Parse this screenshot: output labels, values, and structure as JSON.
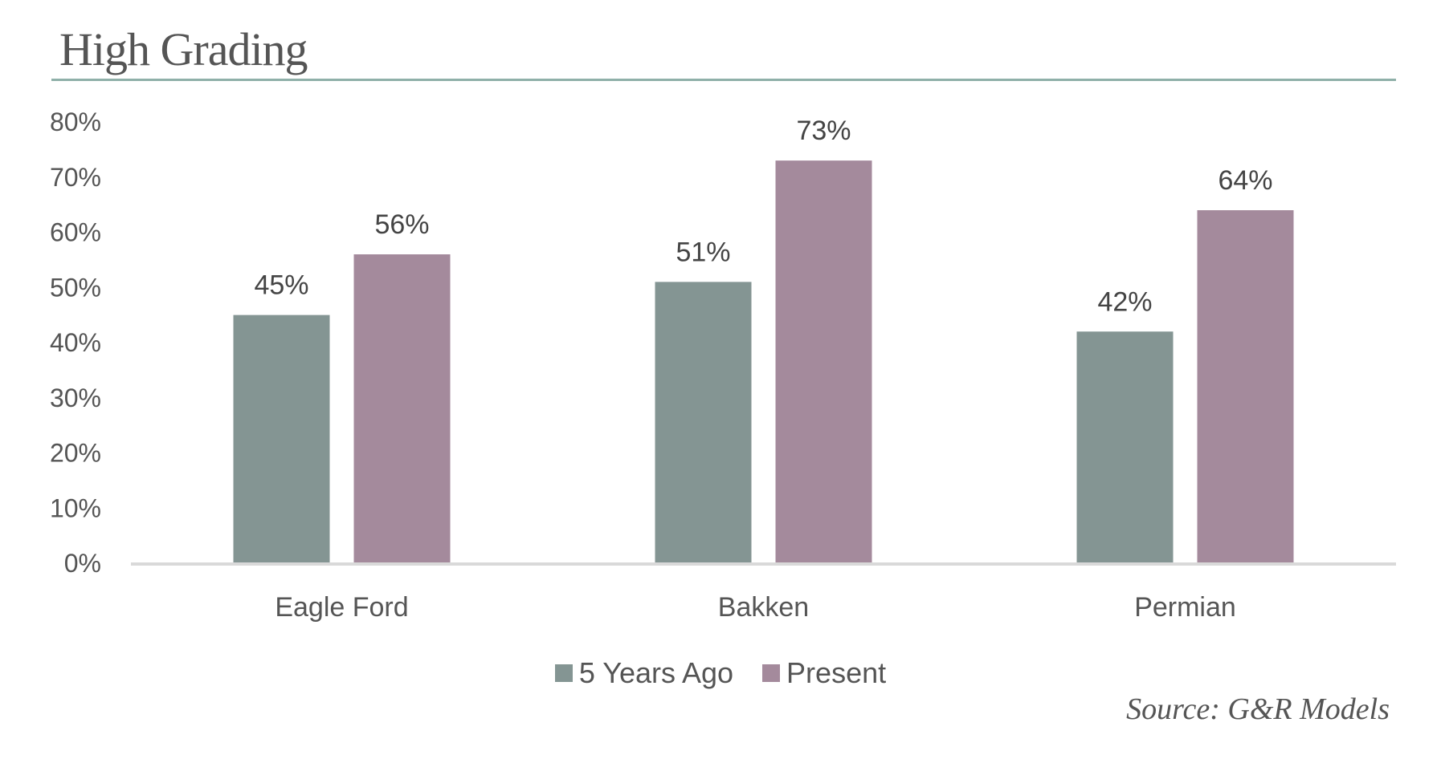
{
  "header": {
    "title": "High Grading"
  },
  "chart_data": {
    "type": "bar",
    "title": "High Grading",
    "categories": [
      "Eagle Ford",
      "Bakken",
      "Permian"
    ],
    "series": [
      {
        "name": "5 Years Ago",
        "values": [
          45,
          51,
          42
        ],
        "color": "#849593"
      },
      {
        "name": "Present",
        "values": [
          56,
          73,
          64
        ],
        "color": "#a48a9c"
      }
    ],
    "data_labels": [
      [
        "45%",
        "51%",
        "42%"
      ],
      [
        "56%",
        "73%",
        "64%"
      ]
    ],
    "ylim": [
      0,
      80
    ],
    "yticks": [
      "0%",
      "10%",
      "20%",
      "30%",
      "40%",
      "50%",
      "60%",
      "70%",
      "80%"
    ],
    "xlabel": "",
    "ylabel": "",
    "grid": false,
    "legend_position": "bottom"
  },
  "legend": {
    "items": [
      {
        "label": "5 Years Ago",
        "color": "#849593"
      },
      {
        "label": "Present",
        "color": "#a48a9c"
      }
    ]
  },
  "footer": {
    "source": "Source: G&R Models"
  },
  "colors": {
    "title_rule": "#8fb0a9",
    "axis_line": "#d9d9d9",
    "text": "#555555"
  }
}
